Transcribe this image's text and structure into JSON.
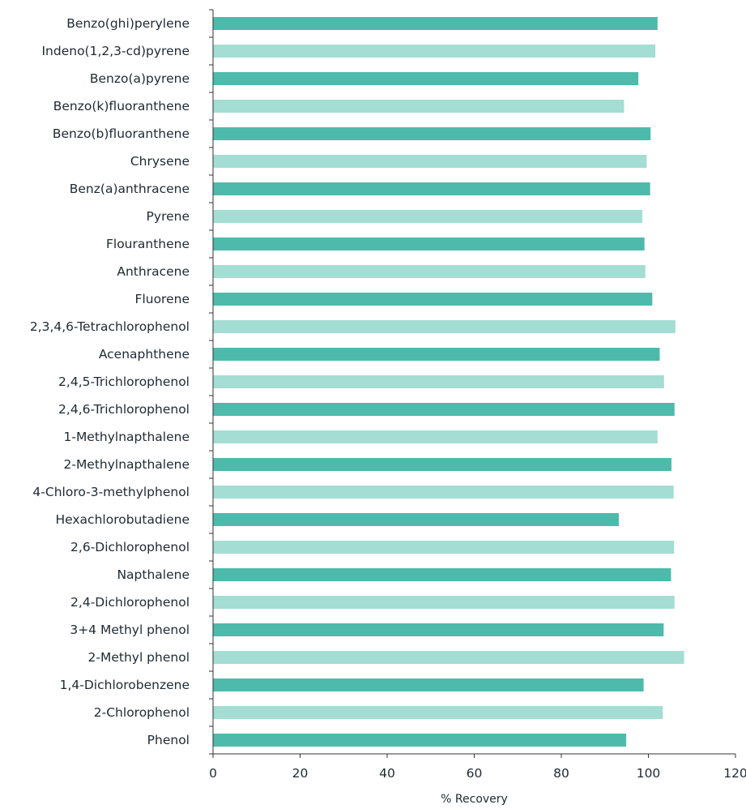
{
  "chart_data": {
    "type": "bar",
    "orientation": "horizontal",
    "categories": [
      "Benzo(ghi)perylene",
      "Indeno(1,2,3-cd)pyrene",
      "Benzo(a)pyrene",
      "Benzo(k)fluoranthene",
      "Benzo(b)fluoranthene",
      "Chrysene",
      "Benz(a)anthracene",
      "Pyrene",
      "Flouranthene",
      "Anthracene",
      "Fluorene",
      "2,3,4,6-Tetrachlorophenol",
      "Acenaphthene",
      "2,4,5-Trichlorophenol",
      "2,4,6-Trichlorophenol",
      "1-Methylnapthalene",
      "2-Methylnapthalene",
      "4-Chloro-3-methylphenol",
      "Hexachlorobutadiene",
      "2,6-Dichlorophenol",
      "Napthalene",
      "2,4-Dichlorophenol",
      "3+4 Methyl phenol",
      "2-Methyl phenol",
      "1,4-Dichlorobenzene",
      "2-Chlorophenol",
      "Phenol"
    ],
    "values": [
      102.1,
      101.6,
      97.7,
      94.4,
      100.5,
      99.6,
      100.4,
      98.6,
      99.1,
      99.3,
      100.9,
      106.2,
      102.6,
      103.6,
      106.0,
      102.1,
      105.3,
      105.8,
      93.2,
      105.9,
      105.2,
      106.0,
      103.5,
      108.2,
      98.9,
      103.3,
      94.9
    ],
    "colors": [
      "#4dbaab",
      "#a3ddd4"
    ],
    "xlabel": "% Recovery",
    "ylabel": "",
    "title": "",
    "xlim": [
      0,
      120
    ],
    "xticks": [
      "0",
      "20",
      "40",
      "60",
      "80",
      "100",
      "120"
    ],
    "grid": false,
    "legend": "none"
  }
}
